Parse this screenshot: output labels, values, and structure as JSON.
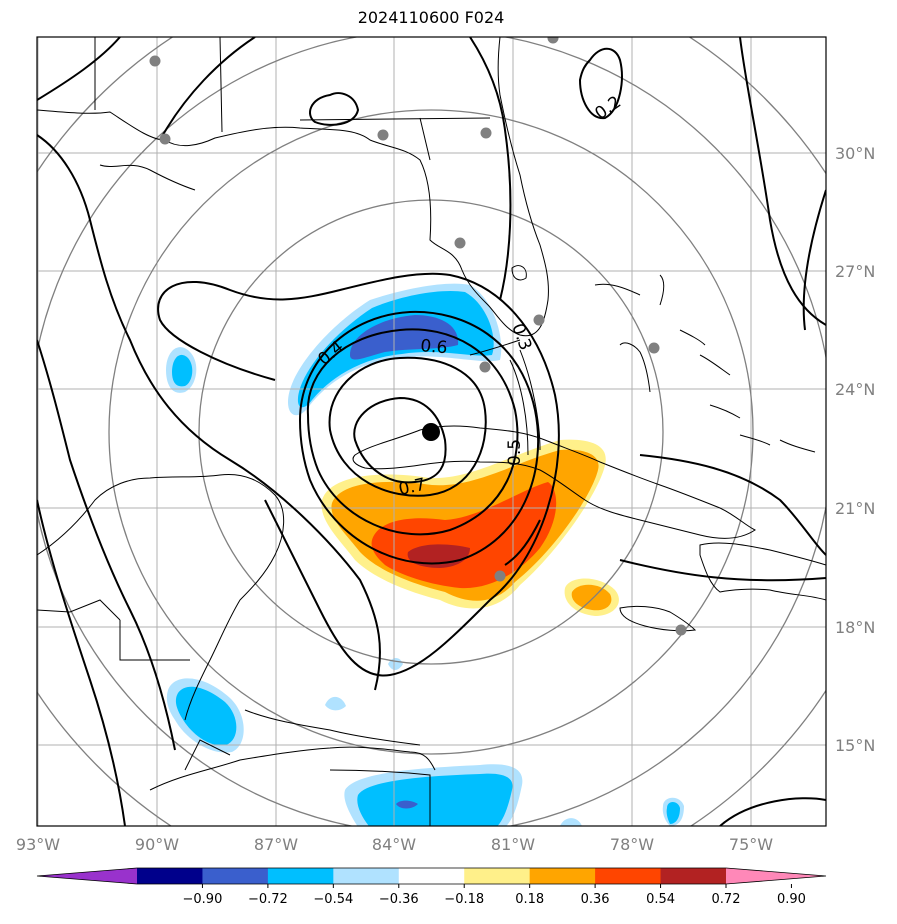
{
  "map": {
    "title": "2024110600 F024",
    "storm_center_marker": "black-dot",
    "lon_ticks": [
      "93°W",
      "90°W",
      "87°W",
      "84°W",
      "81°W",
      "78°W",
      "75°W"
    ],
    "lat_ticks": [
      "30°N",
      "27°N",
      "24°N",
      "21°N",
      "18°N",
      "15°N"
    ],
    "contour_labels": [
      "0.2",
      "0.3",
      "0.4",
      "0.5",
      "0.6",
      "0.7"
    ],
    "colorbar": {
      "ticks": [
        "−0.90",
        "−0.72",
        "−0.54",
        "−0.36",
        "−0.18",
        "0.18",
        "0.36",
        "0.54",
        "0.72",
        "0.90"
      ],
      "colors": [
        "#9932cc",
        "#00008b",
        "#3a5fcd",
        "#00bfff",
        "#b0e2ff",
        "#ffffff",
        "#fff08a",
        "#ffa500",
        "#ff4500",
        "#b22222",
        "#ff88b8"
      ]
    },
    "station_marker_color": "#808080"
  }
}
